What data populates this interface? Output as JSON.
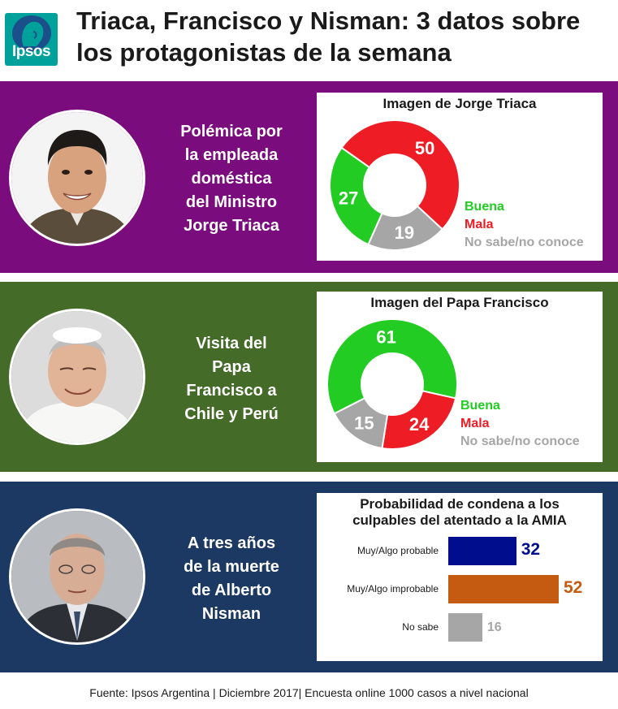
{
  "header": {
    "logo_text": "Ipsos",
    "title_line1": "Triaca, Francisco y Nisman: 3 datos sobre",
    "title_line2": "los protagonistas de la semana"
  },
  "panels": [
    {
      "caption_lines": [
        "Polémica por",
        "la empleada",
        "doméstica",
        "del Ministro",
        "Jorge Triaca"
      ],
      "bg": "#7b0c7d"
    },
    {
      "caption_lines": [
        "Visita del",
        "Papa",
        "Francisco a",
        "Chile y Perú"
      ],
      "bg": "#456b28"
    },
    {
      "caption_lines": [
        "A tres años",
        "de la muerte",
        "de Alberto",
        "Nisman"
      ],
      "bg": "#1c3963"
    }
  ],
  "colors": {
    "buena": "#22cc22",
    "mala": "#ee1c24",
    "nosabe": "#a6a6a6",
    "bar_probable": "#000d8c",
    "bar_improbable": "#c55a11",
    "bar_nosabe": "#a6a6a6"
  },
  "chart_data": [
    {
      "type": "pie",
      "title": "Imagen de Jorge Triaca",
      "categories": [
        "Buena",
        "Mala",
        "No sabe/no conoce"
      ],
      "values": [
        27,
        50,
        19
      ]
    },
    {
      "type": "pie",
      "title": "Imagen del Papa Francisco",
      "categories": [
        "Buena",
        "Mala",
        "No sabe/no conoce"
      ],
      "values": [
        61,
        24,
        15
      ]
    },
    {
      "type": "bar",
      "title_line1": "Probabilidad  de condena a los",
      "title_line2": "culpables del atentado a la AMIA",
      "categories": [
        "Muy/Algo probable",
        "Muy/Algo improbable",
        "No sabe"
      ],
      "values": [
        32,
        52,
        16
      ]
    }
  ],
  "footer": "Fuente: Ipsos Argentina | Diciembre 2017| Encuesta online 1000 casos a nivel nacional"
}
